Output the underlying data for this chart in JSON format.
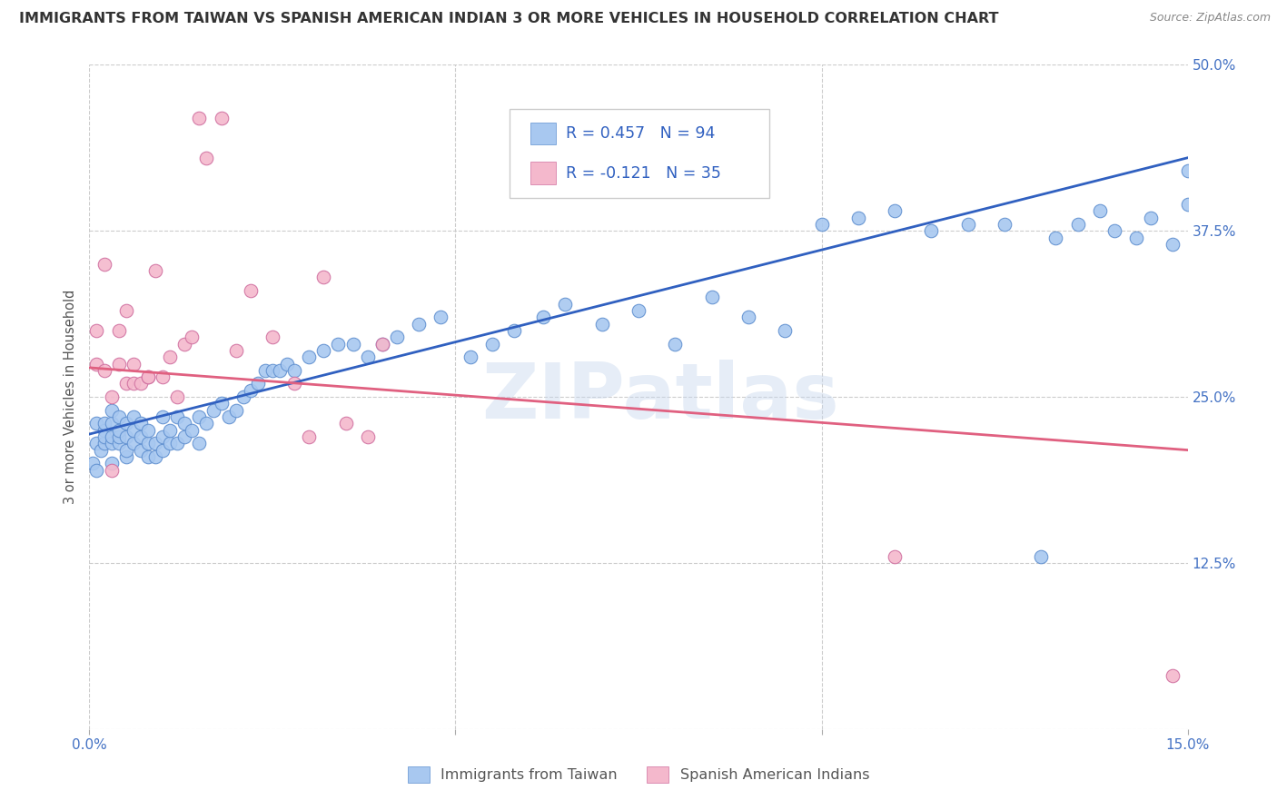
{
  "title": "IMMIGRANTS FROM TAIWAN VS SPANISH AMERICAN INDIAN 3 OR MORE VEHICLES IN HOUSEHOLD CORRELATION CHART",
  "source": "Source: ZipAtlas.com",
  "ylabel": "3 or more Vehicles in Household",
  "xlim": [
    0.0,
    0.15
  ],
  "ylim": [
    0.0,
    0.5
  ],
  "xticks": [
    0.0,
    0.05,
    0.1,
    0.15
  ],
  "xticklabels": [
    "0.0%",
    "",
    "",
    "15.0%"
  ],
  "yticks": [
    0.0,
    0.125,
    0.25,
    0.375,
    0.5
  ],
  "yticklabels_right": [
    "",
    "12.5%",
    "25.0%",
    "37.5%",
    "50.0%"
  ],
  "grid_color": "#cccccc",
  "background_color": "#ffffff",
  "blue_color": "#a8c8f0",
  "pink_color": "#f4b8cc",
  "blue_line_color": "#3060c0",
  "pink_line_color": "#e06080",
  "r_blue": 0.457,
  "n_blue": 94,
  "r_pink": -0.121,
  "n_pink": 35,
  "legend_label_blue": "Immigrants from Taiwan",
  "legend_label_pink": "Spanish American Indians",
  "watermark": "ZIPatlas",
  "title_fontsize": 11.5,
  "axis_tick_fontsize": 11,
  "tick_color": "#4472c4",
  "blue_x": [
    0.0005,
    0.001,
    0.001,
    0.001,
    0.0015,
    0.002,
    0.002,
    0.002,
    0.002,
    0.003,
    0.003,
    0.003,
    0.003,
    0.003,
    0.004,
    0.004,
    0.004,
    0.004,
    0.005,
    0.005,
    0.005,
    0.005,
    0.006,
    0.006,
    0.006,
    0.007,
    0.007,
    0.007,
    0.008,
    0.008,
    0.008,
    0.009,
    0.009,
    0.01,
    0.01,
    0.01,
    0.011,
    0.011,
    0.012,
    0.012,
    0.013,
    0.013,
    0.014,
    0.015,
    0.015,
    0.016,
    0.017,
    0.018,
    0.019,
    0.02,
    0.021,
    0.022,
    0.023,
    0.024,
    0.025,
    0.026,
    0.027,
    0.028,
    0.03,
    0.032,
    0.034,
    0.036,
    0.038,
    0.04,
    0.042,
    0.045,
    0.048,
    0.052,
    0.055,
    0.058,
    0.062,
    0.065,
    0.07,
    0.075,
    0.08,
    0.085,
    0.09,
    0.095,
    0.1,
    0.105,
    0.11,
    0.115,
    0.12,
    0.125,
    0.13,
    0.132,
    0.135,
    0.138,
    0.14,
    0.143,
    0.145,
    0.148,
    0.15,
    0.15
  ],
  "blue_y": [
    0.2,
    0.195,
    0.215,
    0.23,
    0.21,
    0.215,
    0.225,
    0.23,
    0.22,
    0.2,
    0.215,
    0.22,
    0.23,
    0.24,
    0.215,
    0.22,
    0.235,
    0.225,
    0.205,
    0.21,
    0.22,
    0.23,
    0.215,
    0.225,
    0.235,
    0.21,
    0.22,
    0.23,
    0.205,
    0.215,
    0.225,
    0.205,
    0.215,
    0.21,
    0.22,
    0.235,
    0.215,
    0.225,
    0.215,
    0.235,
    0.22,
    0.23,
    0.225,
    0.215,
    0.235,
    0.23,
    0.24,
    0.245,
    0.235,
    0.24,
    0.25,
    0.255,
    0.26,
    0.27,
    0.27,
    0.27,
    0.275,
    0.27,
    0.28,
    0.285,
    0.29,
    0.29,
    0.28,
    0.29,
    0.295,
    0.305,
    0.31,
    0.28,
    0.29,
    0.3,
    0.31,
    0.32,
    0.305,
    0.315,
    0.29,
    0.325,
    0.31,
    0.3,
    0.38,
    0.385,
    0.39,
    0.375,
    0.38,
    0.38,
    0.13,
    0.37,
    0.38,
    0.39,
    0.375,
    0.37,
    0.385,
    0.365,
    0.395,
    0.42
  ],
  "pink_x": [
    0.001,
    0.001,
    0.002,
    0.002,
    0.003,
    0.003,
    0.004,
    0.004,
    0.005,
    0.005,
    0.006,
    0.006,
    0.007,
    0.008,
    0.008,
    0.009,
    0.01,
    0.011,
    0.012,
    0.013,
    0.014,
    0.015,
    0.016,
    0.018,
    0.02,
    0.022,
    0.025,
    0.028,
    0.03,
    0.032,
    0.035,
    0.038,
    0.04,
    0.11,
    0.148
  ],
  "pink_y": [
    0.275,
    0.3,
    0.27,
    0.35,
    0.195,
    0.25,
    0.275,
    0.3,
    0.26,
    0.315,
    0.26,
    0.275,
    0.26,
    0.265,
    0.265,
    0.345,
    0.265,
    0.28,
    0.25,
    0.29,
    0.295,
    0.46,
    0.43,
    0.46,
    0.285,
    0.33,
    0.295,
    0.26,
    0.22,
    0.34,
    0.23,
    0.22,
    0.29,
    0.13,
    0.04
  ]
}
